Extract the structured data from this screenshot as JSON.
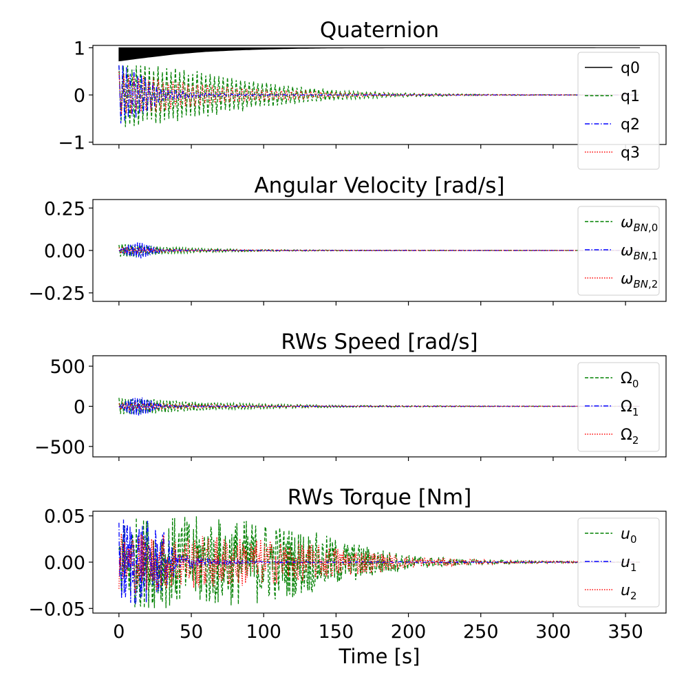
{
  "chart_data": [
    {
      "type": "line",
      "title": "Quaternion",
      "xlabel": "",
      "ylabel": "",
      "xlim": [
        -18,
        378
      ],
      "ylim": [
        -1.05,
        1.05
      ],
      "yticks": [
        1,
        0,
        -1
      ],
      "ytick_labels": [
        "1",
        "0",
        "−1"
      ],
      "show_xticklabels": false,
      "legend": {
        "position": "top-right",
        "entries": [
          "q0",
          "q1",
          "q2",
          "q3"
        ]
      },
      "series": [
        {
          "name": "q0",
          "color": "#000000",
          "style": "solid",
          "kind": "band",
          "x": [
            0,
            20,
            40,
            60,
            80,
            100,
            120,
            140,
            160,
            360
          ],
          "upper": [
            1.0,
            1.0,
            1.0,
            1.0,
            1.0,
            1.0,
            1.0,
            1.0,
            1.0,
            1.0
          ],
          "lower": [
            0.72,
            0.8,
            0.87,
            0.92,
            0.95,
            0.97,
            0.985,
            0.993,
            0.998,
            1.0
          ]
        },
        {
          "name": "q1",
          "color": "#008000",
          "style": "dashed",
          "kind": "osc",
          "period": 3.0,
          "envelope": {
            "x": [
              0,
              10,
              30,
              50,
              75,
              100,
              130,
              160,
              200,
              250,
              300,
              360
            ],
            "y": [
              0.68,
              0.68,
              0.62,
              0.53,
              0.4,
              0.28,
              0.16,
              0.09,
              0.04,
              0.015,
              0.005,
              0.0
            ]
          }
        },
        {
          "name": "q2",
          "color": "#0000ff",
          "style": "dashdot",
          "kind": "osc",
          "period": 2.6,
          "envelope": {
            "x": [
              0,
              10,
              20,
              30,
              50,
              80,
              120,
              200,
              360
            ],
            "y": [
              0.66,
              0.55,
              0.35,
              0.15,
              0.05,
              0.02,
              0.008,
              0.002,
              0.0
            ]
          }
        },
        {
          "name": "q3",
          "color": "#ff0000",
          "style": "dotted",
          "kind": "osc",
          "period": 3.4,
          "envelope": {
            "x": [
              0,
              20,
              50,
              100,
              150,
              200,
              360
            ],
            "y": [
              0.5,
              0.4,
              0.25,
              0.12,
              0.05,
              0.02,
              0.0
            ]
          }
        }
      ]
    },
    {
      "type": "line",
      "title": "Angular Velocity [rad/s]",
      "xlabel": "",
      "ylabel": "",
      "xlim": [
        -18,
        378
      ],
      "ylim": [
        -0.3,
        0.3
      ],
      "yticks": [
        0.25,
        0,
        -0.25
      ],
      "ytick_labels": [
        "0.25",
        "0.00",
        "−0.25"
      ],
      "show_xticklabels": false,
      "legend": {
        "position": "top-right",
        "entries": [
          "ωBN,0",
          "ωBN,1",
          "ωBN,2"
        ]
      },
      "series": [
        {
          "name": "ωBN,0",
          "label_base": "ω",
          "label_sub": "BN,0",
          "color": "#008000",
          "style": "dashed",
          "kind": "osc",
          "period": 2.2,
          "envelope": {
            "x": [
              0,
              10,
              20,
              40,
              60,
              100,
              160,
              360
            ],
            "y": [
              0.04,
              0.04,
              0.03,
              0.018,
              0.012,
              0.005,
              0.002,
              0.0
            ]
          }
        },
        {
          "name": "ωBN,1",
          "label_base": "ω",
          "label_sub": "BN,1",
          "color": "#0000ff",
          "style": "dashdot",
          "kind": "osc",
          "period": 1.6,
          "envelope": {
            "x": [
              0,
              6,
              14,
              22,
              30,
              50,
              100,
              360
            ],
            "y": [
              0.0,
              0.035,
              0.05,
              0.03,
              0.006,
              0.003,
              0.001,
              0.0
            ]
          }
        },
        {
          "name": "ωBN,2",
          "label_base": "ω",
          "label_sub": "BN,2",
          "color": "#ff0000",
          "style": "dotted",
          "kind": "osc",
          "period": 2.8,
          "envelope": {
            "x": [
              0,
              20,
              60,
              150,
              360
            ],
            "y": [
              0.02,
              0.012,
              0.006,
              0.002,
              0.0
            ]
          }
        }
      ]
    },
    {
      "type": "line",
      "title": "RWs Speed [rad/s]",
      "xlabel": "",
      "ylabel": "",
      "xlim": [
        -18,
        378
      ],
      "ylim": [
        -630,
        630
      ],
      "yticks": [
        500,
        0,
        -500
      ],
      "ytick_labels": [
        "500",
        "0",
        "−500"
      ],
      "show_xticklabels": false,
      "legend": {
        "position": "top-right",
        "entries": [
          "Ω0",
          "Ω1",
          "Ω2"
        ]
      },
      "series": [
        {
          "name": "Ω0",
          "label_base": "Ω",
          "label_sub": "0",
          "color": "#008000",
          "style": "dashed",
          "kind": "osc",
          "period": 2.2,
          "envelope": {
            "x": [
              0,
              10,
              20,
              40,
              60,
              100,
              160,
              250,
              360
            ],
            "y": [
              110,
              110,
              95,
              70,
              50,
              28,
              12,
              4,
              0
            ]
          }
        },
        {
          "name": "Ω1",
          "label_base": "Ω",
          "label_sub": "1",
          "color": "#0000ff",
          "style": "dashdot",
          "kind": "osc",
          "period": 1.6,
          "envelope": {
            "x": [
              0,
              6,
              14,
              22,
              30,
              50,
              100,
              360
            ],
            "y": [
              0,
              90,
              125,
              75,
              15,
              6,
              2,
              0
            ]
          }
        },
        {
          "name": "Ω2",
          "label_base": "Ω",
          "label_sub": "2",
          "color": "#ff0000",
          "style": "dotted",
          "kind": "osc",
          "period": 2.8,
          "envelope": {
            "x": [
              0,
              30,
              80,
              150,
              360
            ],
            "y": [
              45,
              30,
              18,
              6,
              0
            ]
          }
        }
      ]
    },
    {
      "type": "line",
      "title": "RWs Torque [Nm]",
      "xlabel": "Time [s]",
      "ylabel": "",
      "xlim": [
        -18,
        378
      ],
      "ylim": [
        -0.055,
        0.055
      ],
      "yticks": [
        0.05,
        0,
        -0.05
      ],
      "ytick_labels": [
        "0.05",
        "0.00",
        "−0.05"
      ],
      "xticks": [
        0,
        50,
        100,
        150,
        200,
        250,
        300,
        350
      ],
      "xtick_labels": [
        "0",
        "50",
        "100",
        "150",
        "200",
        "250",
        "300",
        "350"
      ],
      "show_xticklabels": true,
      "legend": {
        "position": "top-right",
        "entries": [
          "u0",
          "u1",
          "u2"
        ]
      },
      "series": [
        {
          "name": "u0",
          "label_base": "u",
          "label_sub": "0",
          "italic": true,
          "color": "#008000",
          "style": "dashed",
          "kind": "noise",
          "period": 1.0,
          "envelope": {
            "x": [
              0,
              30,
              60,
              100,
              130,
              160,
              200,
              240,
              300,
              360
            ],
            "y": [
              0.05,
              0.05,
              0.05,
              0.045,
              0.035,
              0.022,
              0.008,
              0.003,
              0.001,
              0.0
            ]
          }
        },
        {
          "name": "u1",
          "label_base": "u",
          "label_sub": "1",
          "italic": true,
          "color": "#0000ff",
          "style": "dashdot",
          "kind": "noise",
          "period": 0.9,
          "envelope": {
            "x": [
              0,
              15,
              30,
              40,
              60,
              100,
              360
            ],
            "y": [
              0.05,
              0.05,
              0.035,
              0.012,
              0.004,
              0.001,
              0.0
            ]
          }
        },
        {
          "name": "u2",
          "label_base": "u",
          "label_sub": "2",
          "italic": true,
          "color": "#ff0000",
          "style": "dotted",
          "kind": "noise",
          "period": 1.1,
          "envelope": {
            "x": [
              0,
              40,
              80,
              120,
              160,
              200,
              260,
              360
            ],
            "y": [
              0.035,
              0.03,
              0.028,
              0.022,
              0.015,
              0.006,
              0.002,
              0.0
            ]
          }
        }
      ]
    }
  ]
}
